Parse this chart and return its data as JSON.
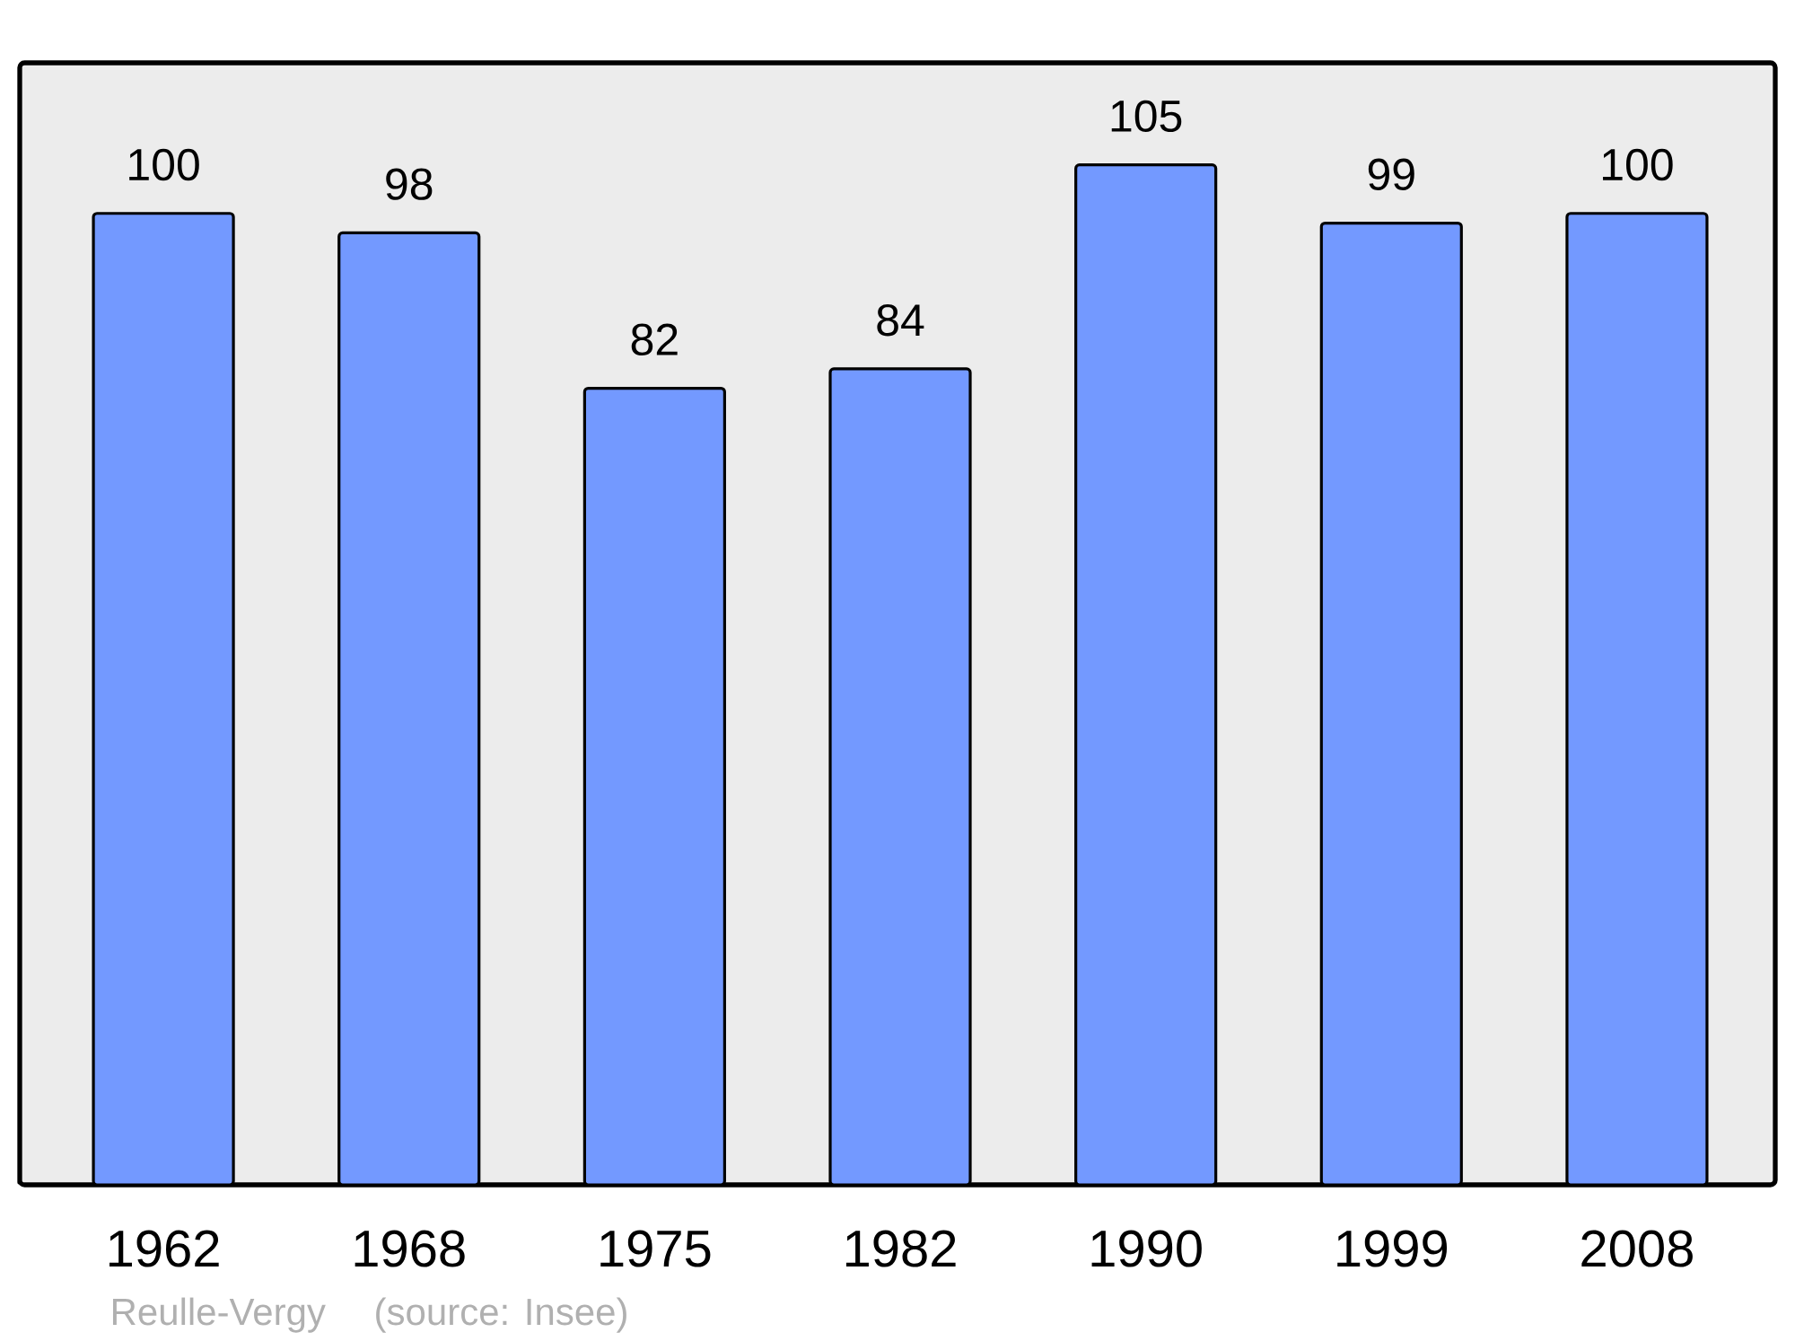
{
  "chart_data": {
    "type": "bar",
    "categories": [
      "1962",
      "1968",
      "1975",
      "1982",
      "1990",
      "1999",
      "2008"
    ],
    "values": [
      100,
      98,
      82,
      84,
      105,
      99,
      100
    ],
    "color": "#7399ff",
    "data_labels": true,
    "ylim": [
      0,
      115.5
    ],
    "tick_labels": "x",
    "annotations": [
      "Reulle-Vergy",
      "(source: Insee)"
    ]
  }
}
